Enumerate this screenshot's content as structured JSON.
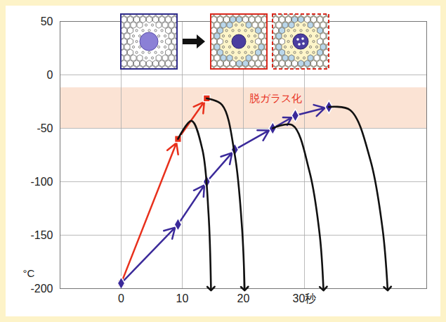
{
  "chart_data": {
    "type": "line",
    "y_label": "°C",
    "xlim": [
      -10,
      50
    ],
    "ylim": [
      -200,
      50
    ],
    "xticks": [
      0,
      10,
      20,
      {
        "value": 30,
        "label": "30秒"
      }
    ],
    "yticks": [
      -200,
      -150,
      -100,
      -50,
      0,
      50
    ],
    "grid": true,
    "band": {
      "range": [
        -50,
        -12
      ],
      "color": "#f9d9c6"
    },
    "annotations": [
      {
        "text": "脱ガラス化",
        "x": 21,
        "y": -22,
        "color": "#e8301c"
      }
    ],
    "series": [
      {
        "color": "#e8301c",
        "marker": "square",
        "line_style": "arrow",
        "x": [
          0,
          9.3,
          14
        ],
        "values": [
          -195,
          -60,
          -22
        ]
      },
      {
        "color": "#3b2a9a",
        "marker": "diamond",
        "line_style": "arrow",
        "x": [
          0,
          9.3,
          14,
          18.6,
          24.8,
          28.5,
          34
        ],
        "values": [
          -195,
          -140,
          -100,
          -70,
          -50,
          -38,
          -30
        ]
      },
      {
        "color": "#111111",
        "marker": "arrow",
        "line_style": "curve",
        "x": [
          9.3,
          11.5,
          13.3,
          14.3,
          14.7
        ],
        "values": [
          -60,
          -43,
          -70,
          -130,
          -200
        ]
      },
      {
        "color": "#111111",
        "marker": "arrow",
        "line_style": "curve",
        "x": [
          14,
          16.5,
          18.6,
          19.8,
          20.2
        ],
        "values": [
          -22,
          -28,
          -75,
          -145,
          -200
        ]
      },
      {
        "color": "#111111",
        "marker": "arrow",
        "line_style": "curve",
        "x": [
          24.8,
          28,
          30.8,
          32.5,
          33.1
        ],
        "values": [
          -50,
          -47,
          -90,
          -150,
          -200
        ]
      },
      {
        "color": "#111111",
        "marker": "arrow",
        "line_style": "curve",
        "x": [
          34,
          37.5,
          40.8,
          42.8,
          43.6
        ],
        "values": [
          -30,
          -33,
          -80,
          -145,
          -200
        ]
      }
    ]
  }
}
